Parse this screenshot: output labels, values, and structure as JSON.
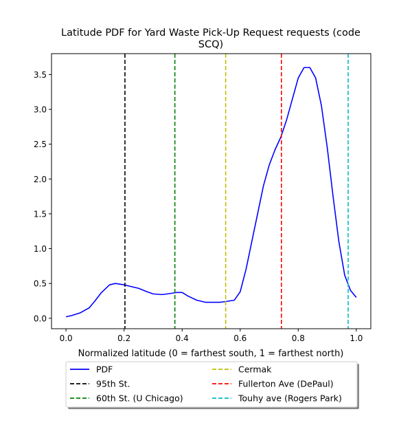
{
  "chart_data": {
    "type": "line",
    "title": "Latitude PDF for Yard Waste Pick-Up Request  requests (code SCQ)",
    "title_lines": [
      "Latitude PDF for Yard Waste Pick-Up Request  requests (code",
      "SCQ)"
    ],
    "xlabel": "Normalized latitude (0 = farthest south, 1 = farthest north)",
    "ylabel": "",
    "xlim": [
      -0.05,
      1.05
    ],
    "ylim": [
      -0.15,
      3.8
    ],
    "xticks": [
      0.0,
      0.2,
      0.4,
      0.6,
      0.8,
      1.0
    ],
    "xtick_labels": [
      "0.0",
      "0.2",
      "0.4",
      "0.6",
      "0.8",
      "1.0"
    ],
    "yticks": [
      0.0,
      0.5,
      1.0,
      1.5,
      2.0,
      2.5,
      3.0,
      3.5
    ],
    "ytick_labels": [
      "0.0",
      "0.5",
      "1.0",
      "1.5",
      "2.0",
      "2.5",
      "3.0",
      "3.5"
    ],
    "grid": false,
    "legend_position": "below plot, two columns",
    "series": [
      {
        "name": "PDF",
        "color": "#0000ff",
        "style": "solid",
        "x": [
          0.0,
          0.02,
          0.05,
          0.08,
          0.1,
          0.12,
          0.15,
          0.17,
          0.2,
          0.22,
          0.25,
          0.28,
          0.3,
          0.33,
          0.35,
          0.38,
          0.4,
          0.42,
          0.45,
          0.48,
          0.5,
          0.53,
          0.55,
          0.58,
          0.6,
          0.62,
          0.65,
          0.68,
          0.7,
          0.72,
          0.74,
          0.76,
          0.78,
          0.8,
          0.82,
          0.84,
          0.86,
          0.88,
          0.9,
          0.92,
          0.94,
          0.96,
          0.98,
          1.0
        ],
        "y": [
          0.02,
          0.04,
          0.08,
          0.15,
          0.25,
          0.36,
          0.48,
          0.5,
          0.48,
          0.46,
          0.43,
          0.38,
          0.35,
          0.34,
          0.35,
          0.37,
          0.37,
          0.32,
          0.26,
          0.23,
          0.23,
          0.23,
          0.24,
          0.26,
          0.38,
          0.7,
          1.3,
          1.9,
          2.2,
          2.42,
          2.6,
          2.85,
          3.15,
          3.45,
          3.6,
          3.6,
          3.45,
          3.05,
          2.45,
          1.75,
          1.1,
          0.62,
          0.4,
          0.3
        ]
      },
      {
        "name": "95th St.",
        "color": "#000000",
        "style": "dashed",
        "x_value": 0.203
      },
      {
        "name": "60th St. (U Chicago)",
        "color": "#008000",
        "style": "dashed",
        "x_value": 0.375
      },
      {
        "name": "Cermak",
        "color": "#bfbf00",
        "style": "dashed",
        "x_value": 0.55
      },
      {
        "name": "Fullerton Ave (DePaul)",
        "color": "#ff0000",
        "style": "dashed",
        "x_value": 0.742
      },
      {
        "name": "Touhy ave (Rogers Park)",
        "color": "#00bfbf",
        "style": "dashed",
        "x_value": 0.972
      }
    ],
    "legend_order": [
      0,
      1,
      2,
      3,
      4,
      5
    ]
  }
}
